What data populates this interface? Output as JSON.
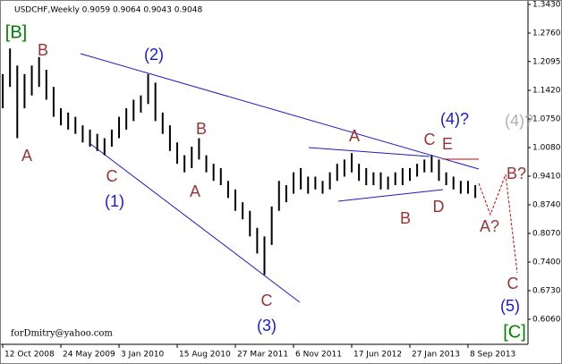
{
  "chart_data": {
    "type": "hl_bars",
    "title": "USDCHF,Weekly  0.9059 0.9064 0.9043 0.9048",
    "footer": "forDmitry@yahoo.com",
    "bar_color": "#000000",
    "x": [
      0,
      4,
      8,
      12,
      16,
      20,
      24,
      28,
      32,
      36,
      40,
      44,
      48,
      52,
      56,
      60,
      64,
      68,
      72,
      76,
      80,
      84,
      88,
      92,
      96,
      100,
      104,
      108,
      112,
      116,
      120,
      124,
      128,
      132,
      136,
      140,
      144,
      148,
      152,
      156,
      160,
      164,
      168,
      172,
      176,
      180,
      184,
      188,
      192,
      196,
      200,
      204,
      208,
      212,
      216,
      220,
      224,
      228,
      232,
      236,
      240,
      244,
      248,
      252,
      256,
      260
    ],
    "high": [
      1.18,
      1.24,
      1.2,
      1.18,
      1.2,
      1.22,
      1.19,
      1.15,
      1.1,
      1.09,
      1.08,
      1.06,
      1.05,
      1.04,
      1.03,
      1.05,
      1.08,
      1.1,
      1.12,
      1.13,
      1.18,
      1.16,
      1.09,
      1.06,
      1.02,
      0.99,
      1.01,
      1.03,
      0.99,
      0.97,
      0.96,
      0.93,
      0.91,
      0.88,
      0.86,
      0.82,
      0.8,
      0.87,
      0.93,
      0.92,
      0.95,
      0.96,
      0.94,
      0.94,
      0.93,
      0.95,
      0.97,
      0.98,
      0.995,
      0.97,
      0.96,
      0.95,
      0.95,
      0.94,
      0.95,
      0.96,
      0.96,
      0.97,
      0.98,
      0.99,
      0.98,
      0.95,
      0.94,
      0.93,
      0.93,
      0.92
    ],
    "low": [
      1.1,
      1.15,
      1.03,
      1.1,
      1.13,
      1.15,
      1.12,
      1.08,
      1.06,
      1.05,
      1.04,
      1.02,
      1.01,
      1.0,
      0.99,
      1.01,
      1.03,
      1.05,
      1.07,
      1.09,
      1.11,
      1.07,
      1.04,
      1.0,
      0.97,
      0.95,
      0.96,
      0.98,
      0.95,
      0.93,
      0.92,
      0.89,
      0.86,
      0.84,
      0.8,
      0.76,
      0.71,
      0.78,
      0.86,
      0.88,
      0.9,
      0.91,
      0.9,
      0.91,
      0.9,
      0.91,
      0.93,
      0.94,
      0.95,
      0.93,
      0.92,
      0.92,
      0.91,
      0.91,
      0.92,
      0.92,
      0.93,
      0.94,
      0.95,
      0.95,
      0.93,
      0.92,
      0.91,
      0.9,
      0.9,
      0.89
    ],
    "xlim": [
      -1.5,
      289
    ],
    "xticks": [
      {
        "value": 0,
        "label": "12 Oct 2008"
      },
      {
        "value": 32,
        "label": "24 May 2009"
      },
      {
        "value": 64,
        "label": "3 Jan 2010"
      },
      {
        "value": 96,
        "label": "15 Aug 2010"
      },
      {
        "value": 128,
        "label": "27 Mar 2011"
      },
      {
        "value": 160,
        "label": "6 Nov 2011"
      },
      {
        "value": 192,
        "label": "17 Jun 2012"
      },
      {
        "value": 224,
        "label": "27 Jan 2013"
      },
      {
        "value": 256,
        "label": "8 Sep 2013"
      }
    ],
    "ylim": [
      0.606,
      1.343
    ],
    "yticks": [
      {
        "value": 1.343,
        "label": "1.3430"
      },
      {
        "value": 1.276,
        "label": "1.2760"
      },
      1.2095,
      {
        "value": 1.142,
        "label": "1.1420"
      },
      {
        "value": 1.075,
        "label": "1.0750"
      },
      {
        "value": 1.008,
        "label": "1.0080"
      },
      {
        "value": 0.941,
        "label": "0.9410"
      },
      {
        "value": 0.874,
        "label": "0.8740"
      },
      {
        "value": 0.807,
        "label": "0.8070"
      },
      {
        "value": 0.74,
        "label": "0.7400"
      },
      {
        "value": 0.673,
        "label": "0.6730"
      },
      {
        "value": 0.606,
        "label": "0.6060"
      }
    ],
    "annotations": [
      {
        "text": "[B]",
        "color": "#008000"
      },
      {
        "text": "B",
        "color": "#993333"
      },
      {
        "text": "A",
        "color": "#993333"
      },
      {
        "text": "C",
        "color": "#993333"
      },
      {
        "text": "(1)",
        "color": "#1a1acc"
      },
      {
        "text": "(2)",
        "color": "#1a1acc"
      },
      {
        "text": "B",
        "color": "#993333"
      },
      {
        "text": "A",
        "color": "#993333"
      },
      {
        "text": "C",
        "color": "#993333"
      },
      {
        "text": "(3)",
        "color": "#1a1acc"
      },
      {
        "text": "A",
        "color": "#993333"
      },
      {
        "text": "B",
        "color": "#993333"
      },
      {
        "text": "C",
        "color": "#993333"
      },
      {
        "text": "E",
        "color": "#993333"
      },
      {
        "text": "D",
        "color": "#993333"
      },
      {
        "text": "(4)?",
        "color": "#1a1acc"
      },
      {
        "text": "(4)?",
        "color": "#b0b0b0"
      },
      {
        "text": "B?",
        "color": "#993333"
      },
      {
        "text": "A?",
        "color": "#993333"
      },
      {
        "text": "C",
        "color": "#993333"
      },
      {
        "text": "(5)",
        "color": "#1a1acc"
      },
      {
        "text": "[C]",
        "color": "#008000"
      }
    ]
  }
}
